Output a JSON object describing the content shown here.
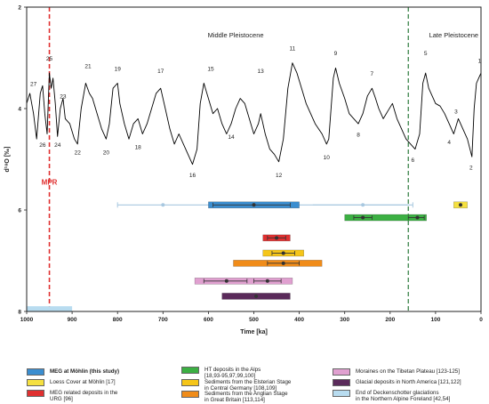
{
  "chart_data": {
    "type": "line",
    "xlabel": "Time [ka]",
    "ylabel": "d¹⁸O [‰]",
    "xlim": [
      1000,
      0
    ],
    "ylim": [
      8,
      2
    ],
    "x_ticks": [
      "1000",
      "900",
      "800",
      "700",
      "600",
      "500",
      "400",
      "300",
      "200",
      "100",
      "0"
    ],
    "x_tick_values": [
      1000,
      900,
      800,
      700,
      600,
      500,
      400,
      300,
      200,
      100,
      0
    ],
    "y_ticks": [
      "2",
      "4",
      "6",
      "8"
    ],
    "y_tick_values": [
      2,
      4,
      6,
      8
    ],
    "grid": false,
    "region_labels": [
      {
        "text": "Middle Pleistocene",
        "x": 540,
        "y": 2.6
      },
      {
        "text": "Late Pleistocene",
        "x": 60,
        "y": 2.6
      }
    ],
    "markers": [
      {
        "label": "MPR",
        "x": 950,
        "y": 5.5,
        "color": "#e03030"
      }
    ],
    "boundary_line": {
      "x": 160,
      "color": "#2a7a3a"
    },
    "series": [
      {
        "color": "#000000",
        "points": [
          [
            1000,
            3.9
          ],
          [
            993,
            3.7
          ],
          [
            985,
            4.1
          ],
          [
            978,
            4.6
          ],
          [
            970,
            3.7
          ],
          [
            965,
            3.55
          ],
          [
            960,
            4.1
          ],
          [
            955,
            4.5
          ],
          [
            950,
            3.3
          ],
          [
            946,
            3.6
          ],
          [
            942,
            3.4
          ],
          [
            937,
            3.9
          ],
          [
            932,
            4.55
          ],
          [
            926,
            4.0
          ],
          [
            920,
            3.8
          ],
          [
            915,
            4.2
          ],
          [
            905,
            4.3
          ],
          [
            895,
            4.6
          ],
          [
            888,
            4.7
          ],
          [
            880,
            4.0
          ],
          [
            870,
            3.5
          ],
          [
            862,
            3.7
          ],
          [
            855,
            3.8
          ],
          [
            845,
            4.1
          ],
          [
            835,
            4.4
          ],
          [
            825,
            4.6
          ],
          [
            818,
            4.3
          ],
          [
            810,
            3.6
          ],
          [
            800,
            3.5
          ],
          [
            795,
            3.9
          ],
          [
            785,
            4.3
          ],
          [
            775,
            4.6
          ],
          [
            765,
            4.3
          ],
          [
            755,
            4.2
          ],
          [
            745,
            4.5
          ],
          [
            735,
            4.3
          ],
          [
            725,
            4.0
          ],
          [
            715,
            3.7
          ],
          [
            705,
            3.6
          ],
          [
            695,
            4.0
          ],
          [
            685,
            4.4
          ],
          [
            675,
            4.7
          ],
          [
            665,
            4.5
          ],
          [
            655,
            4.7
          ],
          [
            645,
            4.9
          ],
          [
            635,
            5.1
          ],
          [
            625,
            4.8
          ],
          [
            618,
            3.9
          ],
          [
            610,
            3.5
          ],
          [
            600,
            3.8
          ],
          [
            590,
            4.1
          ],
          [
            580,
            4.0
          ],
          [
            570,
            4.3
          ],
          [
            560,
            4.5
          ],
          [
            550,
            4.3
          ],
          [
            540,
            4.0
          ],
          [
            530,
            3.8
          ],
          [
            520,
            3.9
          ],
          [
            510,
            4.2
          ],
          [
            500,
            4.5
          ],
          [
            490,
            4.3
          ],
          [
            485,
            4.1
          ],
          [
            475,
            4.5
          ],
          [
            465,
            4.8
          ],
          [
            455,
            4.9
          ],
          [
            445,
            5.05
          ],
          [
            435,
            4.6
          ],
          [
            425,
            3.6
          ],
          [
            415,
            3.1
          ],
          [
            405,
            3.3
          ],
          [
            395,
            3.6
          ],
          [
            385,
            3.9
          ],
          [
            375,
            4.1
          ],
          [
            365,
            4.3
          ],
          [
            350,
            4.5
          ],
          [
            340,
            4.7
          ],
          [
            335,
            4.6
          ],
          [
            325,
            3.4
          ],
          [
            320,
            3.2
          ],
          [
            312,
            3.5
          ],
          [
            300,
            3.8
          ],
          [
            290,
            4.1
          ],
          [
            280,
            4.2
          ],
          [
            270,
            4.3
          ],
          [
            260,
            4.1
          ],
          [
            250,
            3.75
          ],
          [
            240,
            3.6
          ],
          [
            232,
            3.8
          ],
          [
            225,
            4.0
          ],
          [
            215,
            4.2
          ],
          [
            205,
            4.05
          ],
          [
            195,
            3.9
          ],
          [
            185,
            4.2
          ],
          [
            175,
            4.4
          ],
          [
            165,
            4.6
          ],
          [
            155,
            4.7
          ],
          [
            145,
            4.8
          ],
          [
            135,
            4.5
          ],
          [
            128,
            3.5
          ],
          [
            122,
            3.3
          ],
          [
            115,
            3.6
          ],
          [
            110,
            3.7
          ],
          [
            100,
            3.9
          ],
          [
            90,
            3.95
          ],
          [
            80,
            4.1
          ],
          [
            70,
            4.3
          ],
          [
            60,
            4.5
          ],
          [
            50,
            4.2
          ],
          [
            40,
            4.4
          ],
          [
            30,
            4.6
          ],
          [
            20,
            4.95
          ],
          [
            15,
            4.0
          ],
          [
            10,
            3.5
          ],
          [
            5,
            3.4
          ],
          [
            0,
            3.3
          ]
        ]
      }
    ],
    "stage_labels": [
      {
        "text": "27",
        "x": 985,
        "y": 3.55
      },
      {
        "text": "25",
        "x": 950,
        "y": 3.05
      },
      {
        "text": "23",
        "x": 920,
        "y": 3.8
      },
      {
        "text": "26",
        "x": 965,
        "y": 4.75
      },
      {
        "text": "24",
        "x": 932,
        "y": 4.75
      },
      {
        "text": "22",
        "x": 888,
        "y": 4.9
      },
      {
        "text": "21",
        "x": 865,
        "y": 3.2
      },
      {
        "text": "19",
        "x": 800,
        "y": 3.25
      },
      {
        "text": "17",
        "x": 705,
        "y": 3.3
      },
      {
        "text": "20",
        "x": 825,
        "y": 4.9
      },
      {
        "text": "18",
        "x": 755,
        "y": 4.8
      },
      {
        "text": "16",
        "x": 635,
        "y": 5.35
      },
      {
        "text": "15",
        "x": 595,
        "y": 3.25
      },
      {
        "text": "13",
        "x": 485,
        "y": 3.3
      },
      {
        "text": "11",
        "x": 415,
        "y": 2.85
      },
      {
        "text": "14",
        "x": 550,
        "y": 4.6
      },
      {
        "text": "12",
        "x": 445,
        "y": 5.35
      },
      {
        "text": "10",
        "x": 340,
        "y": 5.0
      },
      {
        "text": "9",
        "x": 320,
        "y": 2.95
      },
      {
        "text": "7",
        "x": 240,
        "y": 3.35
      },
      {
        "text": "5",
        "x": 122,
        "y": 2.95
      },
      {
        "text": "8",
        "x": 270,
        "y": 4.55
      },
      {
        "text": "6",
        "x": 150,
        "y": 5.05
      },
      {
        "text": "3",
        "x": 55,
        "y": 4.1
      },
      {
        "text": "4",
        "x": 70,
        "y": 4.7
      },
      {
        "text": "2",
        "x": 22,
        "y": 5.2
      },
      {
        "text": "1",
        "x": 3,
        "y": 3.1
      }
    ],
    "age_bars": [
      {
        "group": "MEG at Möhlin (this study)",
        "y": 5.9,
        "from": 800,
        "to": 150,
        "center": 700,
        "kind": "thin",
        "color": "#a8c8e0"
      },
      {
        "group": "MEG at Möhlin (this study)",
        "y": 5.9,
        "from": 600,
        "to": 400,
        "center": 500,
        "kind": "thick",
        "color": "#3b8ed0",
        "err": [
          590,
          420
        ]
      },
      {
        "group": "MEG at Möhlin (this study)",
        "y": 5.9,
        "from": 370,
        "to": 160,
        "center": 260,
        "kind": "point",
        "color": "#a8c8e0"
      },
      {
        "group": "Loess Cover at Möhlin [17]",
        "y": 5.9,
        "from": 60,
        "to": 30,
        "center": 45,
        "kind": "thick",
        "color": "#f5e040"
      },
      {
        "group": "HT deposits in the Alps",
        "y": 6.15,
        "from": 300,
        "to": 120,
        "center": 260,
        "kind": "thick",
        "color": "#3cb043",
        "err": [
          280,
          240
        ],
        "center2": 140,
        "err2": [
          160,
          125
        ]
      },
      {
        "group": "MEG related deposits in the URG [96]",
        "y": 6.55,
        "from": 480,
        "to": 420,
        "center": 450,
        "kind": "thick",
        "color": "#e03030",
        "err": [
          470,
          430
        ]
      },
      {
        "group": "Sediments from the Elsterian Stage in Central Germany [108,109]",
        "y": 6.85,
        "from": 480,
        "to": 390,
        "center": 435,
        "kind": "thick",
        "color": "#f5c518",
        "err": [
          460,
          410
        ]
      },
      {
        "group": "Sediments from the Anglian Stage in Great Britain [113,114]",
        "y": 7.05,
        "from": 545,
        "to": 350,
        "center": 435,
        "kind": "thick",
        "color": "#f08c1a",
        "err": [
          470,
          400
        ]
      },
      {
        "group": "Moraines on the Tibetan Plateau [123-125]",
        "y": 7.4,
        "from": 630,
        "to": 415,
        "center": 560,
        "kind": "thick",
        "color": "#e0a0d0",
        "err": [
          610,
          515
        ],
        "center2": 470,
        "err2": [
          500,
          440
        ]
      },
      {
        "group": "Glacial deposits in North America [121,122]",
        "y": 7.7,
        "from": 570,
        "to": 420,
        "center": 495,
        "kind": "thick",
        "color": "#5a2a5a"
      },
      {
        "group": "End of Deckenschotter glaciations in the Northern Alpine Foreland [42,54]",
        "y": 7.95,
        "from": 1000,
        "to": 900,
        "center": 950,
        "kind": "band",
        "color": "#b8dcf0"
      }
    ]
  },
  "legend": [
    {
      "label": "MEG at Möhlin (this study)",
      "color": "#3b8ed0",
      "bold": true
    },
    {
      "label": "Loess Cover at Möhlin [17]",
      "color": "#f5e040",
      "bold": false
    },
    {
      "label": "MEG related deposits in the\nURG [96]",
      "color": "#e03030",
      "bold": false
    },
    {
      "label": "HT deposits in the Alps\n[18,93-95,97,99,100]",
      "color": "#3cb043",
      "bold": false
    },
    {
      "label": "Sediments from the Elsterian Stage\nin Central Germany [108,109]",
      "color": "#f5c518",
      "bold": false
    },
    {
      "label": "Sediments from the Anglian Stage\nin Great Britain [113,114]",
      "color": "#f08c1a",
      "bold": false
    },
    {
      "label": "Moraines on the Tibetan Plateau [123-125]",
      "color": "#e0a0d0",
      "bold": false
    },
    {
      "label": "Glacial deposits in North America [121,122]",
      "color": "#5a2a5a",
      "bold": false
    },
    {
      "label": "End of Deckenschotter glaciations\nin the Northern Alpine Foreland [42,54]",
      "color": "#b8dcf0",
      "bold": false
    }
  ]
}
